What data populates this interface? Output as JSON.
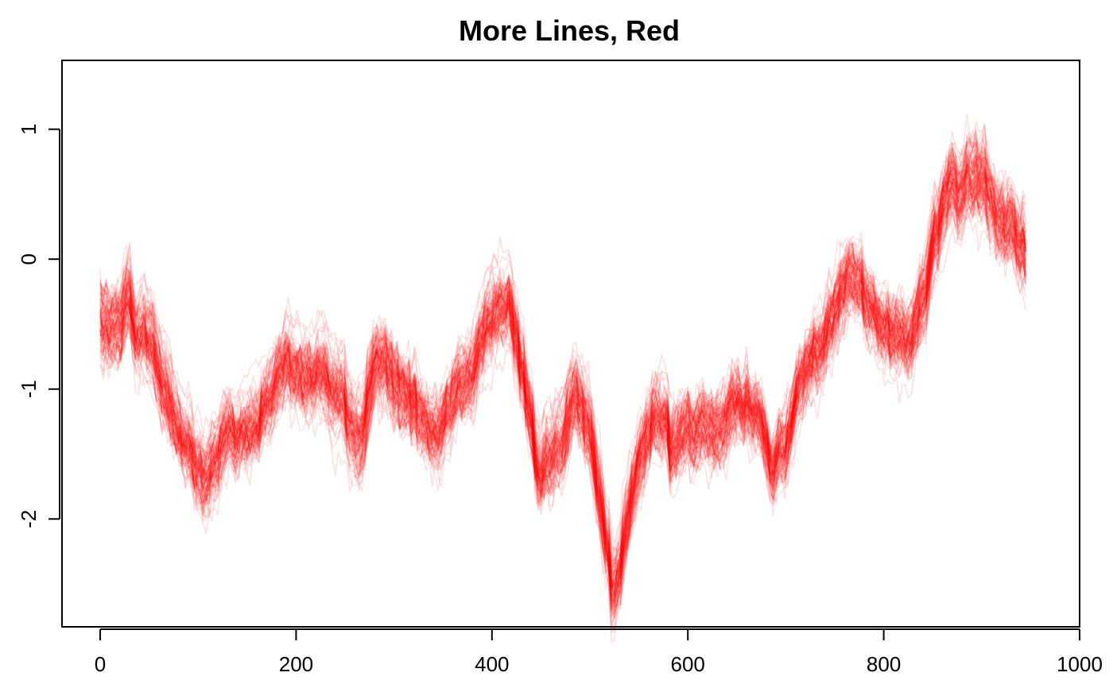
{
  "chart_data": {
    "type": "line",
    "title": "More Lines, Red",
    "xlabel": "",
    "ylabel": "",
    "xlim": [
      -39,
      1000
    ],
    "ylim": [
      -2.83,
      1.53
    ],
    "x_ticks": [
      0,
      200,
      400,
      600,
      800,
      1000
    ],
    "x_tick_labels": [
      "0",
      "200",
      "400",
      "600",
      "800",
      "1000"
    ],
    "y_ticks": [
      -2,
      -1,
      0,
      1
    ],
    "y_tick_labels": [
      "-2",
      "-1",
      "0",
      "1"
    ],
    "grid": false,
    "legend": "none",
    "line_color": "#ff0000",
    "line_alpha": 0.12,
    "n_series": 100,
    "series_spread": 0.28,
    "x_range": [
      0,
      945
    ],
    "trend": {
      "x": [
        0,
        30,
        60,
        100,
        130,
        160,
        200,
        230,
        260,
        290,
        320,
        350,
        390,
        420,
        450,
        480,
        500,
        525,
        560,
        600,
        630,
        660,
        690,
        720,
        760,
        800,
        830,
        870,
        900,
        945
      ],
      "y": [
        -0.6,
        -0.4,
        -0.9,
        -1.7,
        -1.4,
        -1.2,
        -0.9,
        -0.6,
        -1.5,
        -0.7,
        -1.0,
        -1.2,
        -0.5,
        -0.5,
        -1.7,
        -1.2,
        -1.3,
        -2.4,
        -1.3,
        -1.2,
        -1.4,
        -1.0,
        -1.6,
        -0.8,
        -0.3,
        -0.5,
        -0.6,
        0.7,
        0.7,
        0.1
      ]
    }
  }
}
